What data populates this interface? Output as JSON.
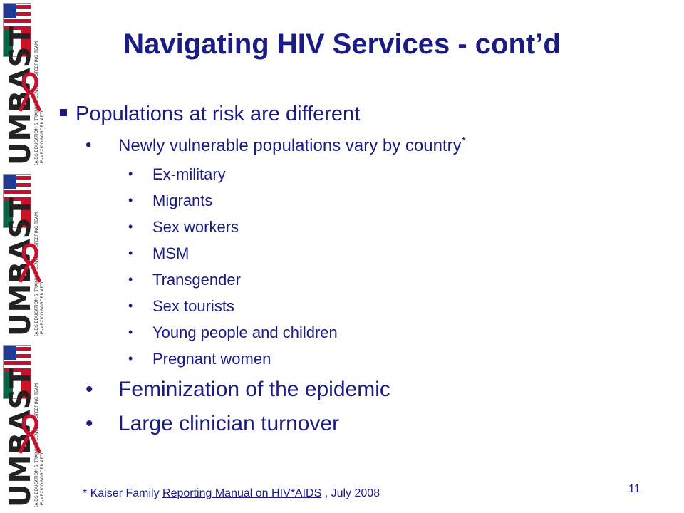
{
  "slide": {
    "title": "Navigating HIV Services - cont’d",
    "bullet1": "Populations at risk are different",
    "bullet1_sub": {
      "text": "Newly vulnerable populations vary by country",
      "marker": "*",
      "items": [
        "Ex-military",
        "Migrants",
        "Sex workers",
        "MSM",
        "Transgender",
        "Sex tourists",
        "Young people and children",
        "Pregnant women"
      ]
    },
    "bullet2": "Feminization of the epidemic",
    "bullet3": "Large clinician turnover",
    "footnote": {
      "prefix": "* Kaiser Family ",
      "link": "Reporting Manual on HIV*AIDS",
      "suffix": " , July 2008"
    },
    "page_number": "11"
  },
  "branding": {
    "logo_text": "UMBAST",
    "logo_sub1": "(AIDS EDUCATION & TRAINING CENTERS) STEERING TEAM",
    "logo_sub2": "US-MEXICO BORDER AETC",
    "colors": {
      "navy": "#1b1b84",
      "ribbon": "#c8102e",
      "mx_green": "#006847"
    }
  }
}
